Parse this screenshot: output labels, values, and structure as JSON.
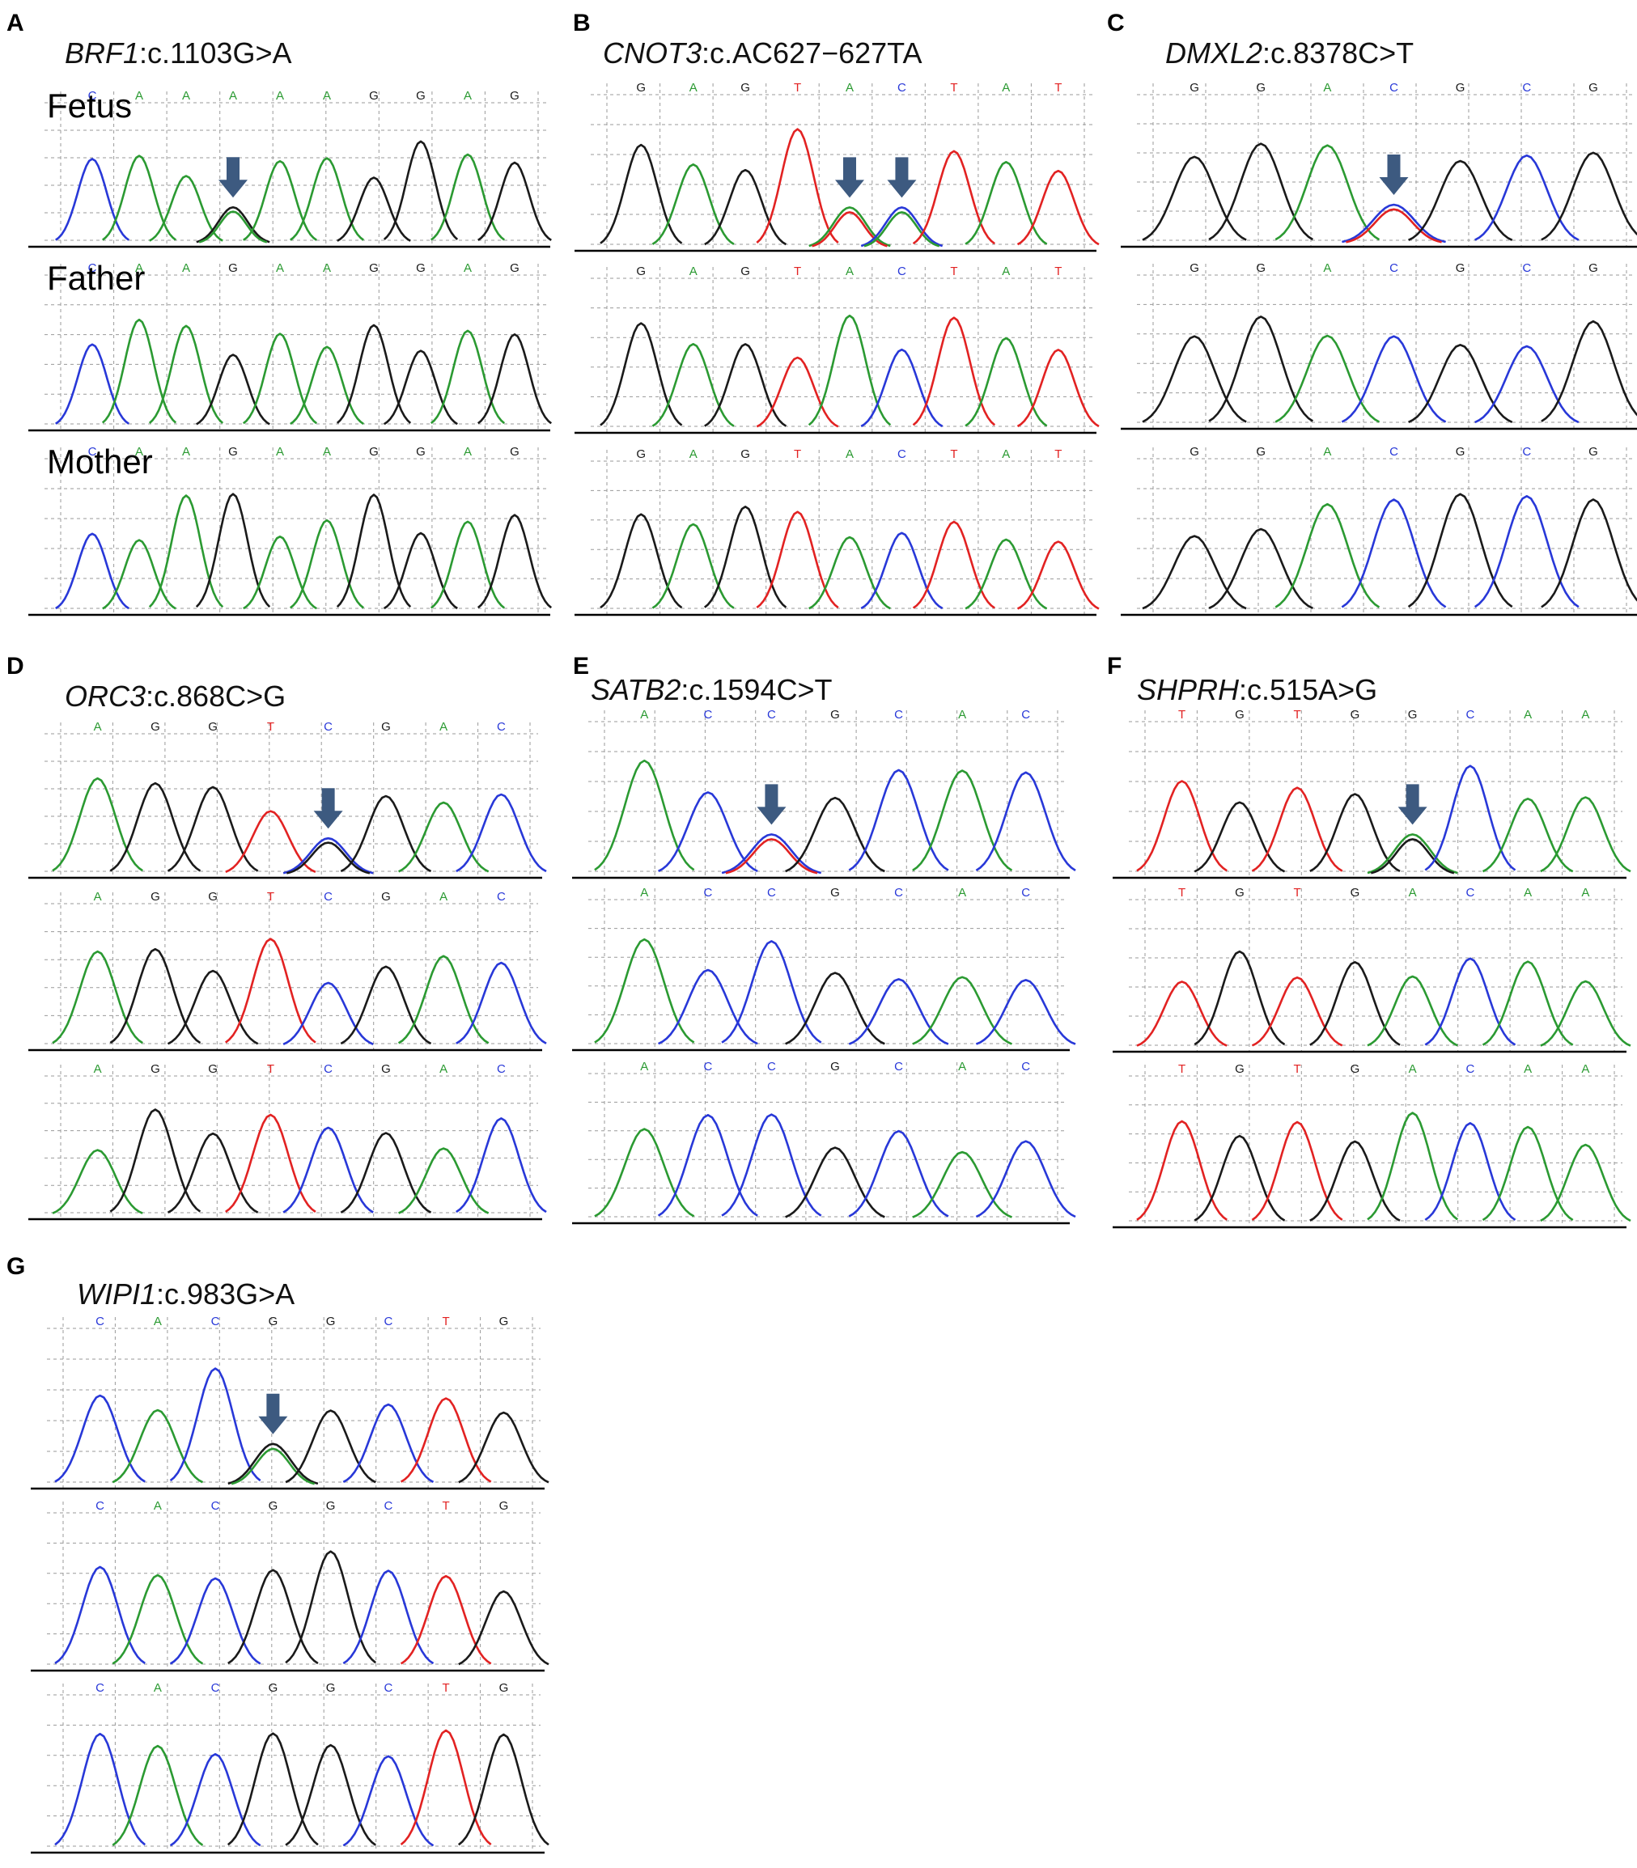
{
  "figure": {
    "colors": {
      "A": "#2b9a32",
      "C": "#2838d8",
      "G": "#1a1a1a",
      "T": "#e22222",
      "arrow": "#3d5a80",
      "grid": "#9a9a9a"
    },
    "panels": [
      {
        "letter": "A",
        "gene": "BRF1",
        "variant": ":c.1103G>A",
        "row_labels": [
          "Fetus",
          "Father",
          "Mother"
        ],
        "rows": [
          {
            "seq": [
              "C",
              "A",
              "A",
              "G",
              "A",
              "A",
              "G",
              "G",
              "A",
              "G"
            ],
            "het_index": 3,
            "het_alt": "A",
            "het_base_label": "A"
          },
          {
            "seq": [
              "C",
              "A",
              "A",
              "G",
              "A",
              "A",
              "G",
              "G",
              "A",
              "G"
            ]
          },
          {
            "seq": [
              "C",
              "A",
              "A",
              "G",
              "A",
              "A",
              "G",
              "G",
              "A",
              "G"
            ]
          }
        ],
        "arrows": [
          3
        ]
      },
      {
        "letter": "B",
        "gene": "CNOT3",
        "variant": ":c.AC627−627TA",
        "row_labels": [],
        "rows": [
          {
            "seq": [
              "G",
              "A",
              "G",
              "T",
              "A",
              "C",
              "T",
              "A",
              "T"
            ],
            "het_index": 4,
            "het_alt": "T",
            "het_index2": 5,
            "het_alt2": "A"
          },
          {
            "seq": [
              "G",
              "A",
              "G",
              "T",
              "A",
              "C",
              "T",
              "A",
              "T"
            ]
          },
          {
            "seq": [
              "G",
              "A",
              "G",
              "T",
              "A",
              "C",
              "T",
              "A",
              "T"
            ]
          }
        ],
        "arrows": [
          4,
          5
        ]
      },
      {
        "letter": "C",
        "gene": "DMXL2",
        "variant": ":c.8378C>T",
        "row_labels": [],
        "rows": [
          {
            "seq": [
              "G",
              "G",
              "A",
              "C",
              "G",
              "C",
              "G"
            ],
            "het_index": 3,
            "het_alt": "T"
          },
          {
            "seq": [
              "G",
              "G",
              "A",
              "C",
              "G",
              "C",
              "G"
            ]
          },
          {
            "seq": [
              "G",
              "G",
              "A",
              "C",
              "G",
              "C",
              "G"
            ]
          }
        ],
        "arrows": [
          3
        ]
      },
      {
        "letter": "D",
        "gene": "ORC3",
        "variant": ":c.868C>G",
        "row_labels": [],
        "rows": [
          {
            "seq": [
              "A",
              "G",
              "G",
              "T",
              "C",
              "G",
              "A",
              "C"
            ],
            "het_index": 4,
            "het_alt": "G"
          },
          {
            "seq": [
              "A",
              "G",
              "G",
              "T",
              "C",
              "G",
              "A",
              "C"
            ]
          },
          {
            "seq": [
              "A",
              "G",
              "G",
              "T",
              "C",
              "G",
              "A",
              "C"
            ]
          }
        ],
        "arrows": [
          4
        ]
      },
      {
        "letter": "E",
        "gene": "SATB2",
        "variant": ":c.1594C>T",
        "row_labels": [],
        "rows": [
          {
            "seq": [
              "A",
              "C",
              "C",
              "G",
              "C",
              "A",
              "C"
            ],
            "het_index": 2,
            "het_alt": "T"
          },
          {
            "seq": [
              "A",
              "C",
              "C",
              "G",
              "C",
              "A",
              "C"
            ]
          },
          {
            "seq": [
              "A",
              "C",
              "C",
              "G",
              "C",
              "A",
              "C"
            ]
          }
        ],
        "arrows": [
          2
        ]
      },
      {
        "letter": "F",
        "gene": "SHPRH",
        "variant": ":c.515A>G",
        "row_labels": [],
        "rows": [
          {
            "seq": [
              "T",
              "G",
              "T",
              "G",
              "A",
              "C",
              "A",
              "A"
            ],
            "het_index": 4,
            "het_alt": "G",
            "het_base_label": "G"
          },
          {
            "seq": [
              "T",
              "G",
              "T",
              "G",
              "A",
              "C",
              "A",
              "A"
            ]
          },
          {
            "seq": [
              "T",
              "G",
              "T",
              "G",
              "A",
              "C",
              "A",
              "A"
            ]
          }
        ],
        "arrows": [
          4
        ]
      },
      {
        "letter": "G",
        "gene": "WIPI1",
        "variant": ":c.983G>A",
        "row_labels": [],
        "rows": [
          {
            "seq": [
              "C",
              "A",
              "C",
              "G",
              "G",
              "C",
              "T",
              "G"
            ],
            "het_index": 3,
            "het_alt": "A"
          },
          {
            "seq": [
              "C",
              "A",
              "C",
              "G",
              "G",
              "C",
              "T",
              "G"
            ]
          },
          {
            "seq": [
              "C",
              "A",
              "C",
              "G",
              "G",
              "C",
              "T",
              "G"
            ]
          }
        ],
        "arrows": [
          3
        ]
      }
    ]
  }
}
